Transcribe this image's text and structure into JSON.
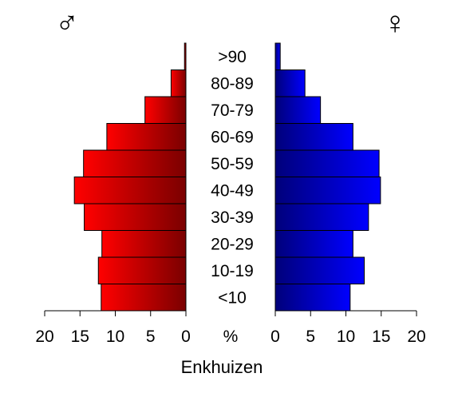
{
  "chart_data": {
    "type": "bar",
    "orientation": "horizontal-population-pyramid",
    "title": "",
    "xlabel": "Enkhuizen",
    "unit_label": "%",
    "categories": [
      "<10",
      "10-19",
      "20-29",
      "30-39",
      "40-49",
      "50-59",
      "60-69",
      "70-79",
      "80-89",
      ">90"
    ],
    "series": [
      {
        "name": "♂",
        "side": "left",
        "values": [
          12.0,
          12.4,
          11.9,
          14.4,
          15.8,
          14.5,
          11.2,
          5.8,
          2.1,
          0.2
        ],
        "color_light": "#ff0000",
        "color_dark": "#7a0000"
      },
      {
        "name": "♀",
        "side": "right",
        "values": [
          10.6,
          12.6,
          11.0,
          13.2,
          14.9,
          14.7,
          11.0,
          6.4,
          4.2,
          0.7
        ],
        "color_light": "#0000ff",
        "color_dark": "#00007a"
      }
    ],
    "xlim": [
      0,
      20
    ],
    "ticks": [
      0,
      5,
      10,
      15,
      20
    ],
    "tick_labels_left": [
      "20",
      "15",
      "10",
      "5",
      "0"
    ],
    "tick_labels_right": [
      "0",
      "5",
      "10",
      "15",
      "20"
    ],
    "grid": false,
    "legend": "none"
  }
}
